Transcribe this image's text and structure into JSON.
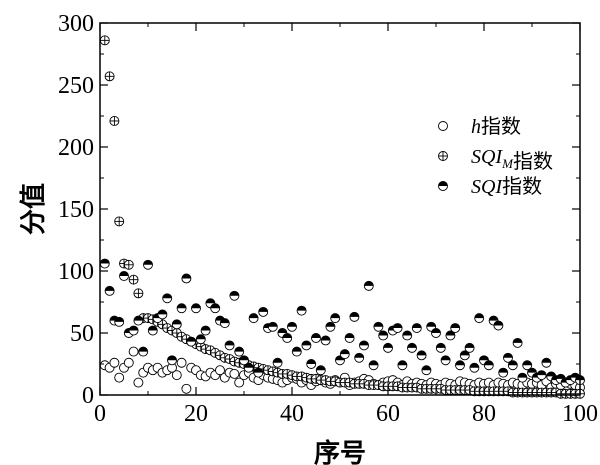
{
  "chart_data": {
    "type": "scatter",
    "title": "",
    "xlabel": "序号",
    "ylabel": "分值",
    "xlim": [
      0,
      100
    ],
    "ylim": [
      0,
      300
    ],
    "xticks": [
      0,
      20,
      40,
      60,
      80,
      100
    ],
    "yticks": [
      0,
      50,
      100,
      150,
      200,
      250,
      300
    ],
    "x_tick_labels": [
      "0",
      "20",
      "40",
      "60",
      "80",
      "100"
    ],
    "y_tick_labels": [
      "0",
      "50",
      "100",
      "150",
      "200",
      "250",
      "300"
    ],
    "grid": false,
    "legend_position": "right-middle",
    "series": [
      {
        "name": "h指数",
        "legend_parts": [
          {
            "text": "h",
            "italic": true
          },
          {
            "text": "指数",
            "italic": false
          }
        ],
        "marker": "open-circle",
        "x": [
          1,
          2,
          3,
          4,
          5,
          6,
          7,
          8,
          9,
          10,
          11,
          12,
          13,
          14,
          15,
          16,
          17,
          18,
          19,
          20,
          21,
          22,
          23,
          24,
          25,
          26,
          27,
          28,
          29,
          30,
          31,
          32,
          33,
          34,
          35,
          36,
          37,
          38,
          39,
          40,
          41,
          42,
          43,
          44,
          45,
          46,
          47,
          48,
          49,
          50,
          51,
          52,
          53,
          54,
          55,
          56,
          57,
          58,
          59,
          60,
          61,
          62,
          63,
          64,
          65,
          66,
          67,
          68,
          69,
          70,
          71,
          72,
          73,
          74,
          75,
          76,
          77,
          78,
          79,
          80,
          81,
          82,
          83,
          84,
          85,
          86,
          87,
          88,
          89,
          90,
          91,
          92,
          93,
          94,
          95,
          96,
          97,
          98,
          99,
          100
        ],
        "y": [
          24,
          22,
          26,
          14,
          22,
          26,
          35,
          10,
          18,
          22,
          20,
          22,
          18,
          20,
          22,
          16,
          26,
          5,
          22,
          20,
          16,
          15,
          18,
          16,
          20,
          14,
          18,
          17,
          10,
          16,
          18,
          14,
          12,
          16,
          14,
          13,
          12,
          10,
          12,
          14,
          13,
          10,
          12,
          8,
          11,
          12,
          10,
          9,
          12,
          10,
          14,
          8,
          10,
          11,
          13,
          12,
          9,
          8,
          10,
          11,
          12,
          10,
          8,
          11,
          9,
          10,
          9,
          8,
          10,
          9,
          8,
          10,
          9,
          8,
          11,
          10,
          9,
          8,
          10,
          9,
          10,
          8,
          10,
          9,
          8,
          10,
          9,
          8,
          10,
          9,
          10,
          8,
          11,
          6,
          9,
          8,
          10,
          9,
          8,
          6
        ]
      },
      {
        "name": "SQI_M指数",
        "legend_parts": [
          {
            "text": "SQI",
            "italic": true
          },
          {
            "text": "M",
            "italic": true,
            "sub": true
          },
          {
            "text": "指数",
            "italic": false
          }
        ],
        "marker": "circle-plus",
        "x": [
          1,
          2,
          3,
          4,
          5,
          6,
          7,
          8,
          9,
          10,
          11,
          12,
          13,
          14,
          15,
          16,
          17,
          18,
          19,
          20,
          21,
          22,
          23,
          24,
          25,
          26,
          27,
          28,
          29,
          30,
          31,
          32,
          33,
          34,
          35,
          36,
          37,
          38,
          39,
          40,
          41,
          42,
          43,
          44,
          45,
          46,
          47,
          48,
          49,
          50,
          51,
          52,
          53,
          54,
          55,
          56,
          57,
          58,
          59,
          60,
          61,
          62,
          63,
          64,
          65,
          66,
          67,
          68,
          69,
          70,
          71,
          72,
          73,
          74,
          75,
          76,
          77,
          78,
          79,
          80,
          81,
          82,
          83,
          84,
          85,
          86,
          87,
          88,
          89,
          90,
          91,
          92,
          93,
          94,
          95,
          96,
          97,
          98,
          99,
          100
        ],
        "y": [
          286,
          257,
          221,
          140,
          106,
          105,
          93,
          82,
          62,
          62,
          61,
          59,
          57,
          54,
          52,
          50,
          47,
          45,
          43,
          41,
          39,
          37,
          36,
          34,
          32,
          30,
          29,
          27,
          26,
          25,
          24,
          23,
          22,
          21,
          20,
          19,
          18,
          17,
          17,
          16,
          15,
          15,
          14,
          13,
          13,
          12,
          12,
          11,
          11,
          10,
          10,
          10,
          9,
          9,
          9,
          8,
          8,
          8,
          7,
          7,
          7,
          7,
          6,
          6,
          6,
          6,
          5,
          5,
          5,
          5,
          5,
          4,
          4,
          4,
          4,
          4,
          4,
          3,
          3,
          3,
          3,
          3,
          3,
          3,
          3,
          2,
          2,
          2,
          2,
          2,
          2,
          2,
          2,
          2,
          2,
          1,
          1,
          1,
          1,
          1
        ]
      },
      {
        "name": "SQI指数",
        "legend_parts": [
          {
            "text": "SQI",
            "italic": true
          },
          {
            "text": "指数",
            "italic": false
          }
        ],
        "marker": "half-filled-circle",
        "x": [
          1,
          2,
          3,
          4,
          5,
          6,
          7,
          8,
          9,
          10,
          11,
          12,
          13,
          14,
          15,
          16,
          17,
          18,
          19,
          20,
          21,
          22,
          23,
          24,
          25,
          26,
          27,
          28,
          29,
          30,
          31,
          32,
          33,
          34,
          35,
          36,
          37,
          38,
          39,
          40,
          41,
          42,
          43,
          44,
          45,
          46,
          47,
          48,
          49,
          50,
          51,
          52,
          53,
          54,
          55,
          56,
          57,
          58,
          59,
          60,
          61,
          62,
          63,
          64,
          65,
          66,
          67,
          68,
          69,
          70,
          71,
          72,
          73,
          74,
          75,
          76,
          77,
          78,
          79,
          80,
          81,
          82,
          83,
          84,
          85,
          86,
          87,
          88,
          89,
          90,
          91,
          92,
          93,
          94,
          95,
          96,
          97,
          98,
          99,
          100
        ],
        "y": [
          106,
          84,
          60,
          59,
          96,
          50,
          52,
          60,
          35,
          105,
          52,
          62,
          65,
          78,
          28,
          57,
          70,
          94,
          43,
          70,
          45,
          52,
          74,
          70,
          60,
          58,
          40,
          80,
          35,
          28,
          22,
          62,
          18,
          67,
          54,
          55,
          26,
          50,
          46,
          55,
          35,
          68,
          40,
          25,
          46,
          20,
          44,
          55,
          62,
          28,
          33,
          46,
          63,
          30,
          40,
          88,
          24,
          55,
          48,
          38,
          52,
          54,
          24,
          48,
          38,
          54,
          32,
          20,
          55,
          50,
          38,
          28,
          48,
          54,
          24,
          32,
          38,
          22,
          62,
          28,
          24,
          60,
          56,
          18,
          30,
          24,
          42,
          14,
          24,
          18,
          14,
          16,
          26,
          15,
          12,
          13,
          10,
          12,
          14,
          12
        ]
      }
    ]
  }
}
